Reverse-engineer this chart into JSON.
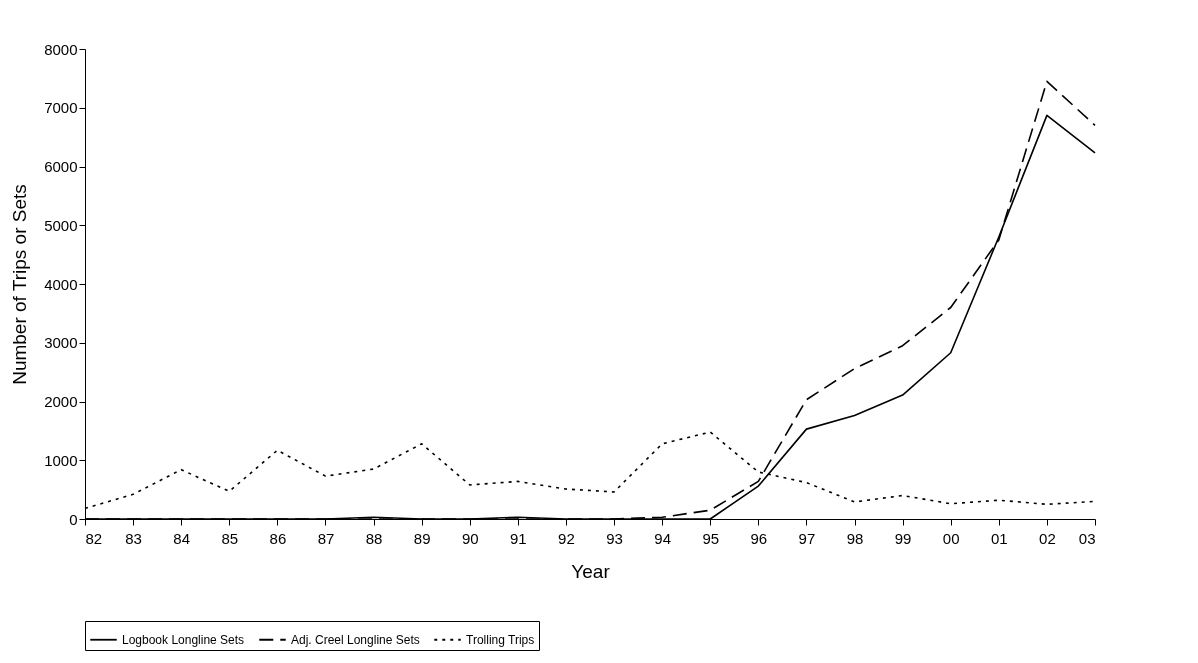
{
  "chart_data": {
    "type": "line",
    "xlabel": "Year",
    "ylabel": "Number of Trips or Sets",
    "categories": [
      "82",
      "83",
      "84",
      "85",
      "86",
      "87",
      "88",
      "89",
      "90",
      "91",
      "92",
      "93",
      "94",
      "95",
      "96",
      "97",
      "98",
      "99",
      "00",
      "01",
      "02",
      "03"
    ],
    "series": [
      {
        "name": "Logbook Longline Sets",
        "color": "#000000",
        "line_style": "solid",
        "values": [
          0,
          0,
          0,
          0,
          0,
          0,
          30,
          0,
          0,
          30,
          0,
          0,
          0,
          0,
          560,
          1530,
          1760,
          2110,
          2830,
          4800,
          6870,
          6230
        ]
      },
      {
        "name": "Adj. Creel Longline Sets",
        "color": "#000000",
        "line_style": "dashed",
        "values": [
          0,
          0,
          0,
          0,
          0,
          0,
          0,
          0,
          0,
          0,
          0,
          0,
          30,
          150,
          640,
          2030,
          2560,
          2950,
          3600,
          4750,
          7450,
          6700
        ]
      },
      {
        "name": "Trolling Trips",
        "color": "#000000",
        "line_style": "dotted",
        "values": [
          180,
          420,
          840,
          470,
          1170,
          730,
          850,
          1280,
          580,
          640,
          510,
          460,
          1280,
          1480,
          800,
          620,
          290,
          400,
          260,
          320,
          250,
          300
        ]
      }
    ],
    "ylim": [
      0,
      8000
    ],
    "yticks": [
      0,
      1000,
      2000,
      3000,
      4000,
      5000,
      6000,
      7000,
      8000
    ],
    "grid": false,
    "legend": "bottom",
    "marker": "none"
  }
}
